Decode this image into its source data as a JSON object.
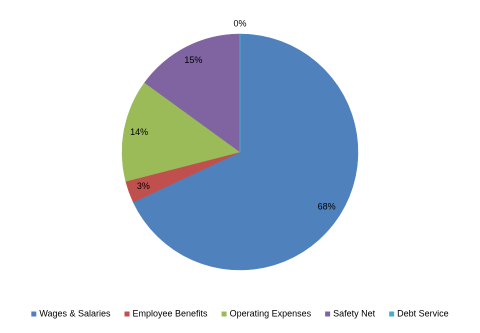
{
  "chart_data": {
    "type": "pie",
    "categories": [
      "Wages & Salaries",
      "Employee Benefits",
      "Operating Expenses",
      "Safety Net",
      "Debt Service"
    ],
    "values": [
      68,
      3,
      14,
      15,
      0
    ],
    "value_labels": [
      "68%",
      "3%",
      "14%",
      "15%",
      "0%"
    ],
    "colors": [
      "#4f81bd",
      "#c0504d",
      "#9bbb59",
      "#8064a2",
      "#4bacc6"
    ],
    "legend": "bottom"
  }
}
